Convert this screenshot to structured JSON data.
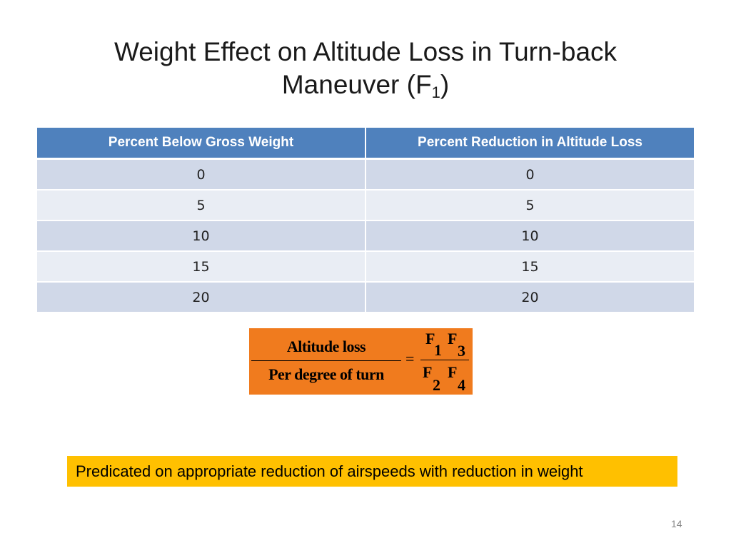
{
  "title": {
    "line1": "Weight Effect on Altitude Loss in Turn-back",
    "line2": "Maneuver (F",
    "subscript": "1",
    "close": ")"
  },
  "table": {
    "headers": [
      "Percent Below Gross Weight",
      "Percent Reduction in Altitude Loss"
    ],
    "rows": [
      [
        "0",
        "0"
      ],
      [
        "5",
        "5"
      ],
      [
        "10",
        "10"
      ],
      [
        "15",
        "15"
      ],
      [
        "20",
        "20"
      ]
    ]
  },
  "formula": {
    "numerator": "Altitude loss",
    "denominator": "Per degree of turn",
    "equals": "=",
    "rhs_num_vars": [
      "F",
      "F"
    ],
    "rhs_num_subs": [
      "1",
      "3"
    ],
    "rhs_den_vars": [
      "F",
      "F"
    ],
    "rhs_den_subs": [
      "2",
      "4"
    ]
  },
  "note": "Predicated on appropriate reduction of airspeeds with reduction in weight",
  "page_number": "14",
  "colors": {
    "header_blue": "#4f81bd",
    "row_odd": "#d0d8e8",
    "row_even": "#e9edf4",
    "formula_bg": "#f07b1e",
    "note_bg": "#ffc000"
  }
}
